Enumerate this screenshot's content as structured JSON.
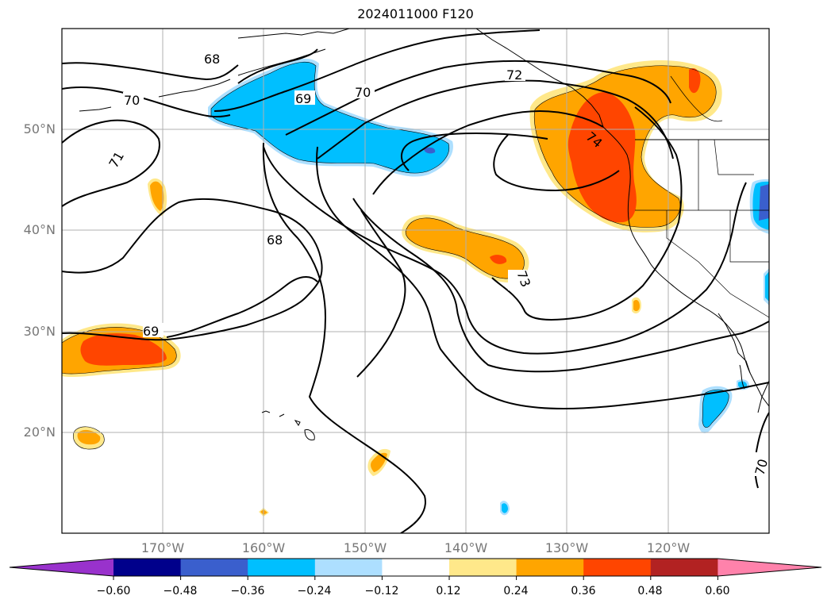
{
  "title": "2024011000 F120",
  "lat_labels": [
    "50°N",
    "40°N",
    "30°N",
    "20°N"
  ],
  "lon_labels": [
    "170°W",
    "160°W",
    "150°W",
    "140°W",
    "130°W",
    "120°W"
  ],
  "contour_labels": [
    "68",
    "69",
    "70",
    "71",
    "72",
    "73",
    "74"
  ],
  "colorbar": {
    "tick_labels": [
      "−0.60",
      "−0.48",
      "−0.36",
      "−0.24",
      "−0.12",
      "0.12",
      "0.24",
      "0.36",
      "0.48",
      "0.60"
    ],
    "colors": [
      "#9932CC",
      "#00008B",
      "#3A5FCD",
      "#00BFFF",
      "#ADDFFF",
      "#FFFFFF",
      "#FFE88A",
      "#FFA500",
      "#FF4500",
      "#B22222",
      "#FF82AB"
    ]
  },
  "fill_colors": {
    "orange_light": "#FFE88A",
    "orange": "#FFA500",
    "red_orange": "#FF4500",
    "blue_light": "#ADDFFF",
    "blue": "#00BFFF",
    "blue_dark": "#3A5FCD"
  }
}
